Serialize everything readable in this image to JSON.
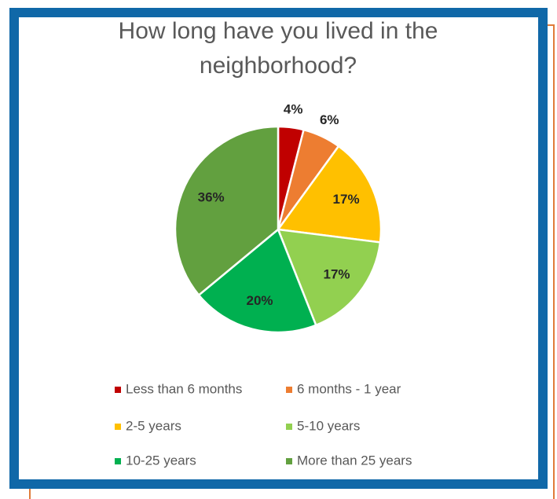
{
  "chart_data": {
    "type": "pie",
    "title": "How long have you lived in the neighborhood?",
    "categories": [
      "Less than 6 months",
      "6 months - 1 year",
      "2-5 years",
      "5-10 years",
      "10-25 years",
      "More than 25 years"
    ],
    "values": [
      4,
      6,
      17,
      17,
      20,
      36
    ],
    "value_labels": [
      "4%",
      "6%",
      "17%",
      "17%",
      "20%",
      "36%"
    ],
    "colors": [
      "#c00000",
      "#ed7d31",
      "#ffc000",
      "#92d050",
      "#00b050",
      "#62a03f"
    ],
    "legend": "bottom"
  }
}
